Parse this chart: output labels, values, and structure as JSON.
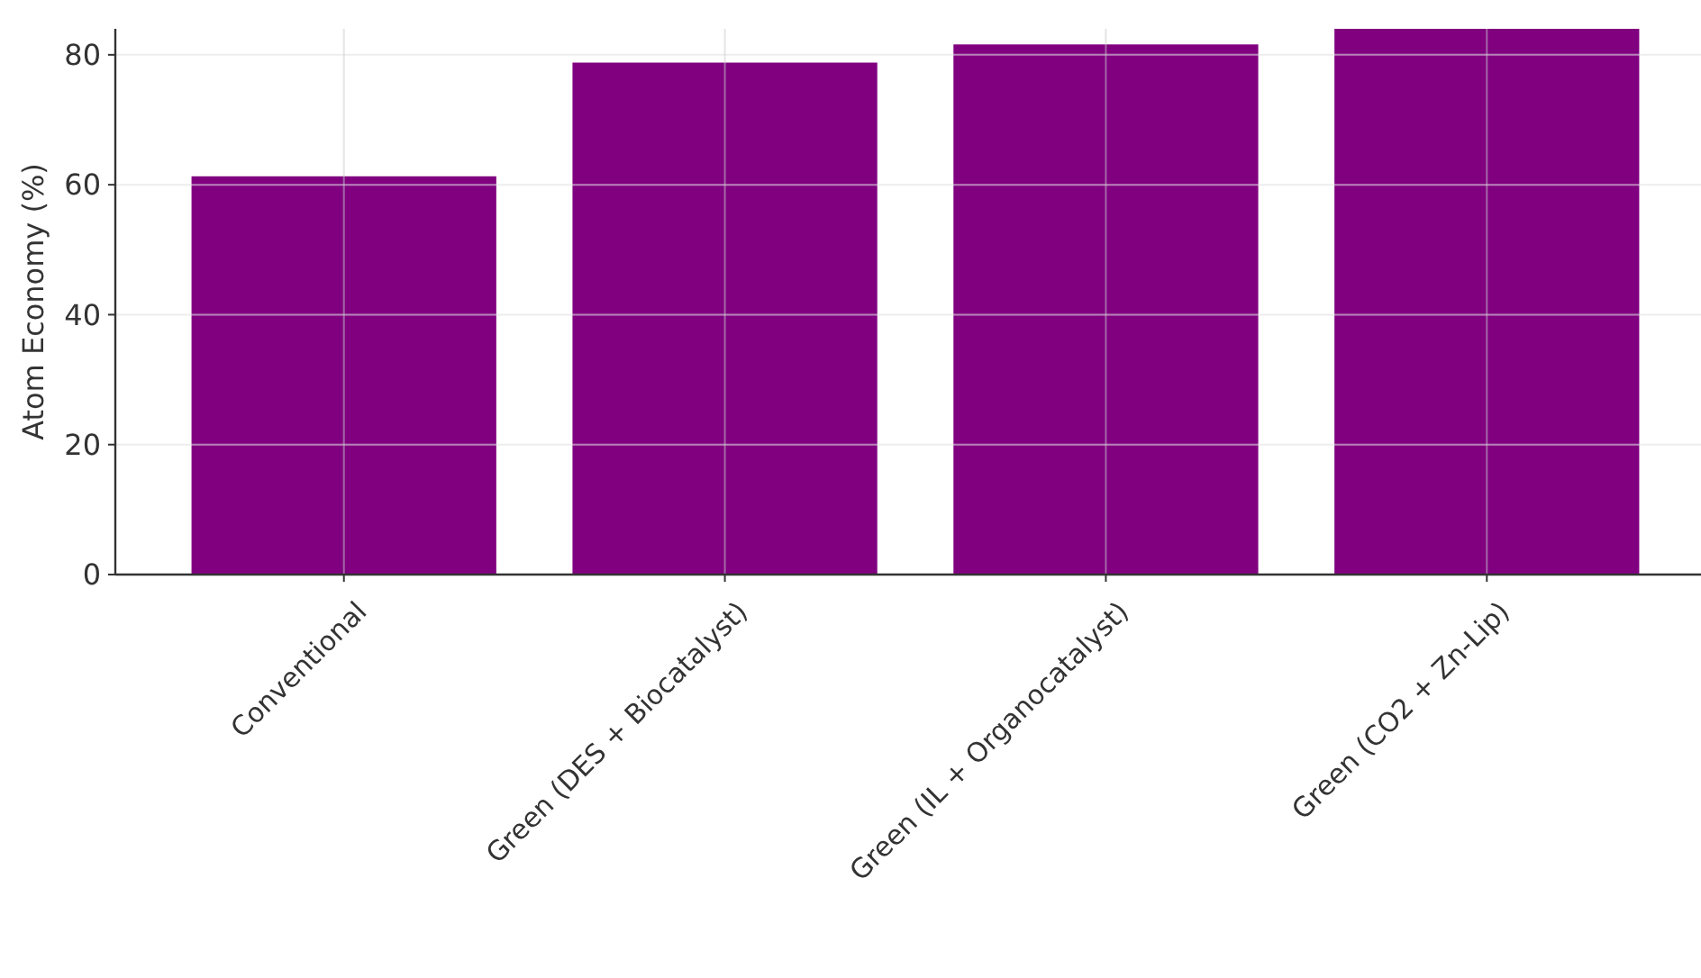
{
  "chart_data": {
    "type": "bar",
    "ylabel": "Atom Economy (%)",
    "categories": [
      "Conventional",
      "Green (DES + Biocatalyst)",
      "Green (IL + Organocatalyst)",
      "Green (CO2 + Zn-Lip)"
    ],
    "values": [
      61.3,
      78.8,
      81.6,
      84
    ],
    "color": "#800080",
    "ylim": [
      0,
      84
    ],
    "yticks": [
      0,
      20,
      40,
      60,
      80
    ],
    "grid": true
  }
}
